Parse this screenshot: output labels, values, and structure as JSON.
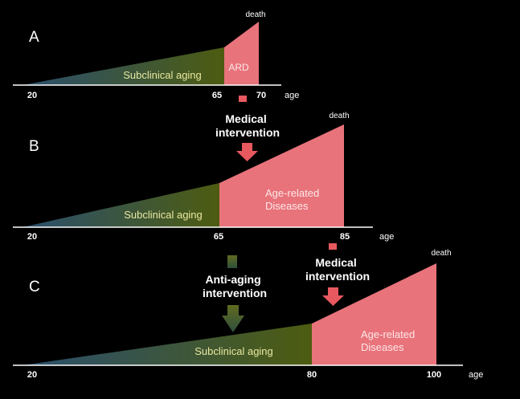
{
  "colors": {
    "background": "#000000",
    "disease_fill": "#e8737b",
    "disease_text": "#fde7e7",
    "arrow_red": "#e8595f",
    "subclinical_left": "#2a4f6e",
    "subclinical_right": "#4d5c10",
    "subclinical_text": "#e8e8a0",
    "axis": "#ffffff",
    "label_text": "#ffffff",
    "anti_aging_top": "#606b1f",
    "anti_aging_bottom": "#2f4f3e"
  },
  "panels": [
    {
      "letter": "A",
      "axis_unit": "age",
      "ticks": {
        "start": "20",
        "onset": "65",
        "end": "70"
      },
      "subclinical_label": "Subclinical aging",
      "disease_label": [
        "ARD"
      ],
      "death_label": "death"
    },
    {
      "letter": "B",
      "axis_unit": "age",
      "ticks": {
        "start": "20",
        "onset": "65",
        "end": "85"
      },
      "subclinical_label": "Subclinical aging",
      "disease_label": [
        "Age-related",
        "Diseases"
      ],
      "death_label": "death",
      "intervention": {
        "lines": [
          "Medical",
          "intervention"
        ],
        "kind": "medical"
      }
    },
    {
      "letter": "C",
      "axis_unit": "age",
      "ticks": {
        "start": "20",
        "onset": "80",
        "end": "100"
      },
      "subclinical_label": "Subclinical aging",
      "disease_label": [
        "Age-related",
        "Diseases"
      ],
      "death_label": "death",
      "intervention": {
        "lines": [
          "Medical",
          "intervention"
        ],
        "kind": "medical"
      },
      "anti_aging": {
        "lines": [
          "Anti-aging",
          "intervention"
        ],
        "kind": "anti-aging"
      }
    }
  ]
}
